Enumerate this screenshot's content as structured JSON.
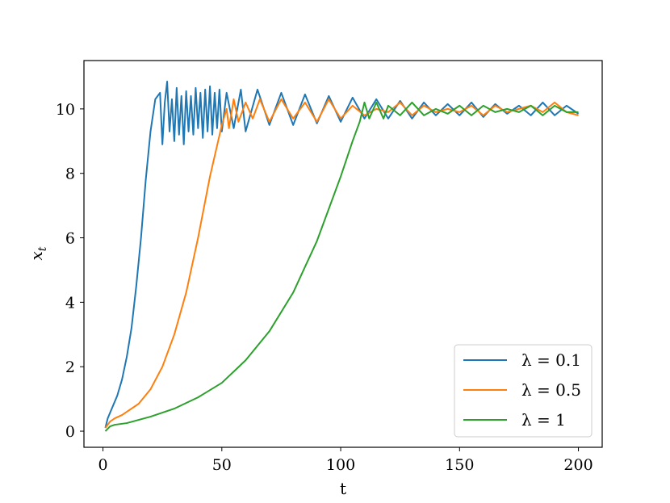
{
  "chart_data": {
    "type": "line",
    "title": "",
    "xlabel": "t",
    "ylabel": "x_t",
    "xlim": [
      -8,
      210
    ],
    "ylim": [
      -0.5,
      11.5
    ],
    "xticks": [
      0,
      50,
      100,
      150,
      200
    ],
    "xtick_labels": [
      "0",
      "50",
      "100",
      "150",
      "200"
    ],
    "yticks": [
      0,
      2,
      4,
      6,
      8,
      10
    ],
    "ytick_labels": [
      "0",
      "2",
      "4",
      "6",
      "8",
      "10"
    ],
    "grid": false,
    "legend_position": "bottom-right",
    "series": [
      {
        "name": "λ = 0.1",
        "color": "#1f77b4",
        "x": [
          1,
          2,
          4,
          6,
          8,
          10,
          12,
          14,
          16,
          18,
          20,
          22,
          24,
          25,
          26,
          27,
          28,
          29,
          30,
          31,
          32,
          33,
          34,
          35,
          36,
          37,
          38,
          39,
          40,
          41,
          42,
          43,
          44,
          45,
          46,
          47,
          48,
          49,
          50,
          52,
          55,
          58,
          60,
          65,
          70,
          75,
          80,
          85,
          90,
          95,
          100,
          105,
          110,
          115,
          120,
          125,
          130,
          135,
          140,
          145,
          150,
          155,
          160,
          165,
          170,
          175,
          180,
          185,
          190,
          195,
          200
        ],
        "values": [
          0.1,
          0.4,
          0.75,
          1.1,
          1.6,
          2.3,
          3.2,
          4.5,
          6.0,
          7.8,
          9.3,
          10.3,
          10.5,
          8.9,
          10.2,
          10.85,
          9.3,
          10.3,
          9.0,
          10.65,
          9.2,
          10.4,
          8.9,
          10.55,
          9.3,
          10.4,
          9.2,
          10.65,
          9.4,
          10.5,
          9.1,
          10.6,
          9.3,
          10.7,
          9.2,
          10.5,
          9.4,
          10.6,
          9.3,
          10.5,
          9.4,
          10.6,
          9.3,
          10.6,
          9.5,
          10.5,
          9.5,
          10.45,
          9.55,
          10.4,
          9.6,
          10.35,
          9.7,
          10.3,
          9.7,
          10.25,
          9.7,
          10.2,
          9.8,
          10.15,
          9.8,
          10.2,
          9.75,
          10.15,
          9.85,
          10.1,
          9.8,
          10.2,
          9.8,
          10.1,
          9.85
        ]
      },
      {
        "name": "λ = 0.5",
        "color": "#ff7f0e",
        "x": [
          1,
          3,
          5,
          8,
          10,
          15,
          20,
          25,
          30,
          35,
          40,
          45,
          50,
          52,
          53,
          55,
          57,
          60,
          63,
          66,
          70,
          75,
          80,
          85,
          90,
          95,
          100,
          105,
          110,
          115,
          120,
          125,
          130,
          135,
          140,
          145,
          150,
          155,
          160,
          165,
          170,
          175,
          180,
          185,
          190,
          195,
          200
        ],
        "values": [
          0.1,
          0.3,
          0.4,
          0.5,
          0.6,
          0.85,
          1.3,
          2.0,
          3.0,
          4.3,
          6.0,
          7.9,
          9.5,
          10.0,
          9.4,
          10.3,
          9.6,
          10.2,
          9.7,
          10.3,
          9.6,
          10.3,
          9.7,
          10.2,
          9.6,
          10.3,
          9.7,
          10.1,
          9.8,
          10.0,
          9.9,
          10.2,
          9.8,
          10.1,
          9.9,
          10.0,
          9.9,
          10.1,
          9.8,
          10.1,
          9.9,
          10.0,
          10.1,
          9.9,
          10.2,
          9.9,
          9.8
        ]
      },
      {
        "name": "λ = 1",
        "color": "#2ca02c",
        "x": [
          1,
          3,
          5,
          10,
          20,
          30,
          40,
          50,
          60,
          70,
          80,
          90,
          100,
          105,
          108,
          110,
          112,
          115,
          118,
          120,
          125,
          130,
          135,
          140,
          145,
          150,
          155,
          160,
          165,
          170,
          175,
          180,
          185,
          190,
          195,
          200
        ],
        "values": [
          0.0,
          0.15,
          0.2,
          0.25,
          0.45,
          0.7,
          1.05,
          1.5,
          2.2,
          3.1,
          4.3,
          5.9,
          7.9,
          9.0,
          9.6,
          10.2,
          9.7,
          10.2,
          9.7,
          10.1,
          9.8,
          10.2,
          9.8,
          10.0,
          9.85,
          10.1,
          9.8,
          10.1,
          9.9,
          10.0,
          9.9,
          10.1,
          9.8,
          10.1,
          9.9,
          9.9
        ]
      }
    ]
  }
}
